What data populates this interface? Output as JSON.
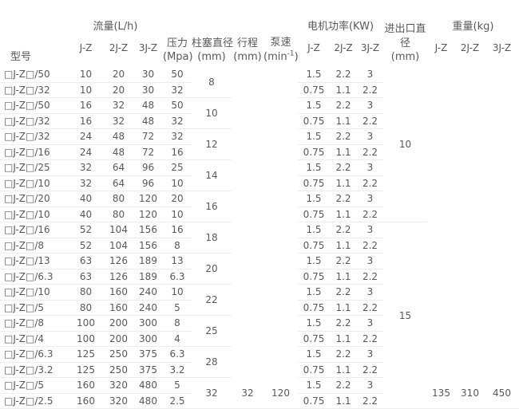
{
  "table": {
    "header": {
      "model": "型号",
      "flow_label": "流量(L/h)",
      "flow_subs": [
        "J-Z",
        "2J-Z",
        "3J-Z"
      ],
      "pressure_lines": [
        "压力",
        "(Mpa)"
      ],
      "plunger_lines": [
        "柱塞直径",
        "(mm)"
      ],
      "stroke_lines": [
        "行程",
        "(mm)"
      ],
      "speed_label": "泵速",
      "speed_unit_pre": "(min",
      "speed_unit_sup": "-1",
      "speed_unit_post": ")",
      "power_label": "电机功率(KW)",
      "power_subs": [
        "J-Z",
        "2J-Z",
        "3J-Z"
      ],
      "inlet_lines": [
        "进出口直",
        "径",
        "(mm)"
      ],
      "weight_label": "重量(kg)",
      "weight_subs": [
        "J-Z",
        "2J-Z",
        "3J-Z"
      ]
    },
    "rows": [
      {
        "model": "□J-Z□/50",
        "flow": [
          "10",
          "20",
          "30"
        ],
        "pressure": "50",
        "power": [
          "1.5",
          "2.2",
          "3"
        ]
      },
      {
        "model": "□J-Z□/32",
        "flow": [
          "10",
          "20",
          "30"
        ],
        "pressure": "32",
        "power": [
          "0.75",
          "1.1",
          "2.2"
        ]
      },
      {
        "model": "□J-Z□/50",
        "flow": [
          "16",
          "32",
          "48"
        ],
        "pressure": "50",
        "power": [
          "1.5",
          "2.2",
          "3"
        ]
      },
      {
        "model": "□J-Z□/32",
        "flow": [
          "16",
          "32",
          "48"
        ],
        "pressure": "32",
        "power": [
          "0.75",
          "1.1",
          "2.2"
        ]
      },
      {
        "model": "□J-Z□/32",
        "flow": [
          "24",
          "48",
          "72"
        ],
        "pressure": "32",
        "power": [
          "1.5",
          "2.2",
          "3"
        ]
      },
      {
        "model": "□J-Z□/16",
        "flow": [
          "24",
          "48",
          "72"
        ],
        "pressure": "16",
        "power": [
          "0.75",
          "1.1",
          "2.2"
        ]
      },
      {
        "model": "□J-Z□/25",
        "flow": [
          "32",
          "64",
          "96"
        ],
        "pressure": "25",
        "power": [
          "1.5",
          "2.2",
          "3"
        ]
      },
      {
        "model": "□J-Z□/10",
        "flow": [
          "32",
          "64",
          "96"
        ],
        "pressure": "10",
        "power": [
          "0.75",
          "1.1",
          "2.2"
        ]
      },
      {
        "model": "□J-Z□/20",
        "flow": [
          "40",
          "80",
          "120"
        ],
        "pressure": "20",
        "power": [
          "1.5",
          "2.2",
          "3"
        ]
      },
      {
        "model": "□J-Z□/10",
        "flow": [
          "40",
          "80",
          "120"
        ],
        "pressure": "10",
        "power": [
          "0.75",
          "1.1",
          "2.2"
        ]
      },
      {
        "model": "□J-Z□/16",
        "flow": [
          "52",
          "104",
          "156"
        ],
        "pressure": "16",
        "power": [
          "1.5",
          "2.2",
          "3"
        ]
      },
      {
        "model": "□J-Z□/8",
        "flow": [
          "52",
          "104",
          "156"
        ],
        "pressure": "8",
        "power": [
          "0.75",
          "1.1",
          "2.2"
        ]
      },
      {
        "model": "□J-Z□/13",
        "flow": [
          "63",
          "126",
          "189"
        ],
        "pressure": "13",
        "power": [
          "1.5",
          "2.2",
          "3"
        ]
      },
      {
        "model": "□J-Z□/6.3",
        "flow": [
          "63",
          "126",
          "189"
        ],
        "pressure": "6.3",
        "power": [
          "0.75",
          "1.1",
          "2.2"
        ]
      },
      {
        "model": "□J-Z□/10",
        "flow": [
          "80",
          "160",
          "240"
        ],
        "pressure": "10",
        "power": [
          "1.5",
          "2.2",
          "3"
        ]
      },
      {
        "model": "□J-Z□/5",
        "flow": [
          "80",
          "160",
          "240"
        ],
        "pressure": "5",
        "power": [
          "0.75",
          "1.1",
          "2.2"
        ]
      },
      {
        "model": "□J-Z□/8",
        "flow": [
          "100",
          "200",
          "300"
        ],
        "pressure": "8",
        "power": [
          "1.5",
          "2.2",
          "3"
        ]
      },
      {
        "model": "□J-Z□/4",
        "flow": [
          "100",
          "200",
          "300"
        ],
        "pressure": "4",
        "power": [
          "0.75",
          "1.1",
          "2.2"
        ]
      },
      {
        "model": "□J-Z□/6.3",
        "flow": [
          "125",
          "250",
          "375"
        ],
        "pressure": "6.3",
        "power": [
          "1.5",
          "2.2",
          "3"
        ]
      },
      {
        "model": "□J-Z□/3.2",
        "flow": [
          "125",
          "250",
          "375"
        ],
        "pressure": "3.2",
        "power": [
          "0.75",
          "1.1",
          "2.2"
        ]
      },
      {
        "model": "□J-Z□/5",
        "flow": [
          "160",
          "320",
          "480"
        ],
        "pressure": "5",
        "power": [
          "1.5",
          "2.2",
          "3"
        ]
      },
      {
        "model": "□J-Z□/2.5",
        "flow": [
          "160",
          "320",
          "480"
        ],
        "pressure": "2.5",
        "power": [
          "0.75",
          "1.1",
          "2.2"
        ]
      }
    ],
    "plunger_values": [
      "8",
      "10",
      "12",
      "14",
      "16",
      "18",
      "20",
      "22",
      "25",
      "28",
      "32"
    ],
    "stroke_value": "32",
    "speed_value": "120",
    "inlet_values": [
      "10",
      "15"
    ],
    "weight_values": [
      "135",
      "310",
      "450"
    ]
  }
}
